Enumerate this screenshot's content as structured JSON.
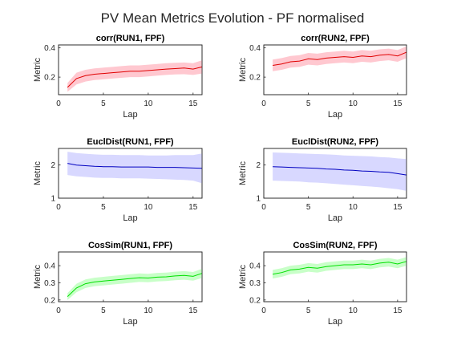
{
  "figure": {
    "title": "PV Mean Metrics Evolution - PF normalised"
  },
  "chart_data": [
    {
      "type": "line",
      "title": "corr(RUN1, FPF)",
      "xlabel": "Lap",
      "ylabel": "Metric",
      "xlim": [
        0,
        16
      ],
      "ylim": [
        0.08,
        0.42
      ],
      "xticks": [
        0,
        5,
        10,
        15
      ],
      "yticks": [
        0.2,
        0.4
      ],
      "yticklabels": [
        "0.2",
        "0.4"
      ],
      "grid": false,
      "color": "#e00000",
      "band_color": "#ffc8d0",
      "x": [
        1,
        2,
        3,
        4,
        5,
        6,
        7,
        8,
        9,
        10,
        11,
        12,
        13,
        14,
        15,
        16
      ],
      "series": [
        {
          "values": [
            0.13,
            0.19,
            0.21,
            0.22,
            0.225,
            0.23,
            0.235,
            0.24,
            0.24,
            0.245,
            0.25,
            0.255,
            0.258,
            0.262,
            0.255,
            0.27
          ]
        }
      ],
      "band_lower": [
        0.1,
        0.15,
        0.17,
        0.18,
        0.185,
        0.19,
        0.195,
        0.2,
        0.2,
        0.205,
        0.21,
        0.215,
        0.218,
        0.22,
        0.215,
        0.225
      ],
      "band_upper": [
        0.16,
        0.23,
        0.25,
        0.26,
        0.265,
        0.27,
        0.275,
        0.28,
        0.28,
        0.285,
        0.29,
        0.295,
        0.298,
        0.3,
        0.295,
        0.315
      ]
    },
    {
      "type": "line",
      "title": "corr(RUN2, FPF)",
      "xlabel": "Lap",
      "ylabel": "Metric",
      "xlim": [
        0,
        16
      ],
      "ylim": [
        0.08,
        0.42
      ],
      "xticks": [
        0,
        5,
        10,
        15
      ],
      "yticks": [
        0.2,
        0.4
      ],
      "yticklabels": [
        "0.2",
        "0.4"
      ],
      "grid": false,
      "color": "#e00000",
      "band_color": "#ffc8d0",
      "x": [
        1,
        2,
        3,
        4,
        5,
        6,
        7,
        8,
        9,
        10,
        11,
        12,
        13,
        14,
        15,
        16
      ],
      "series": [
        {
          "values": [
            0.28,
            0.29,
            0.305,
            0.31,
            0.325,
            0.32,
            0.33,
            0.335,
            0.34,
            0.335,
            0.345,
            0.34,
            0.35,
            0.355,
            0.345,
            0.37
          ]
        }
      ],
      "band_lower": [
        0.24,
        0.25,
        0.265,
        0.27,
        0.285,
        0.28,
        0.29,
        0.295,
        0.3,
        0.295,
        0.305,
        0.3,
        0.31,
        0.315,
        0.305,
        0.33
      ],
      "band_upper": [
        0.32,
        0.33,
        0.345,
        0.35,
        0.365,
        0.36,
        0.37,
        0.375,
        0.38,
        0.375,
        0.385,
        0.38,
        0.39,
        0.395,
        0.385,
        0.41
      ]
    },
    {
      "type": "line",
      "title": "EuclDist(RUN1, FPF)",
      "xlabel": "Lap",
      "ylabel": "Metric",
      "xlim": [
        0,
        16
      ],
      "ylim": [
        1,
        2.5
      ],
      "xticks": [
        0,
        5,
        10,
        15
      ],
      "yticks": [
        1,
        2
      ],
      "yticklabels": [
        "1",
        "2"
      ],
      "grid": false,
      "color": "#0000c0",
      "band_color": "#d8d8ff",
      "x": [
        1,
        2,
        3,
        4,
        5,
        6,
        7,
        8,
        9,
        10,
        11,
        12,
        13,
        14,
        15,
        16
      ],
      "series": [
        {
          "values": [
            2.05,
            2.0,
            1.98,
            1.96,
            1.95,
            1.95,
            1.94,
            1.94,
            1.94,
            1.94,
            1.93,
            1.93,
            1.93,
            1.92,
            1.91,
            1.9
          ]
        }
      ],
      "band_lower": [
        1.7,
        1.66,
        1.64,
        1.62,
        1.61,
        1.61,
        1.6,
        1.6,
        1.6,
        1.59,
        1.58,
        1.57,
        1.56,
        1.55,
        1.53,
        1.45
      ],
      "band_upper": [
        2.4,
        2.36,
        2.34,
        2.32,
        2.31,
        2.31,
        2.3,
        2.3,
        2.3,
        2.29,
        2.29,
        2.29,
        2.3,
        2.3,
        2.3,
        2.35
      ]
    },
    {
      "type": "line",
      "title": "EuclDist(RUN2, FPF)",
      "xlabel": "Lap",
      "ylabel": "Metric",
      "xlim": [
        0,
        16
      ],
      "ylim": [
        1,
        2.5
      ],
      "xticks": [
        0,
        5,
        10,
        15
      ],
      "yticks": [
        1,
        2
      ],
      "yticklabels": [
        "1",
        "2"
      ],
      "grid": false,
      "color": "#0000c0",
      "band_color": "#d8d8ff",
      "x": [
        1,
        2,
        3,
        4,
        5,
        6,
        7,
        8,
        9,
        10,
        11,
        12,
        13,
        14,
        15,
        16
      ],
      "series": [
        {
          "values": [
            1.95,
            1.94,
            1.93,
            1.92,
            1.91,
            1.9,
            1.88,
            1.87,
            1.85,
            1.84,
            1.82,
            1.81,
            1.79,
            1.78,
            1.74,
            1.7
          ]
        }
      ],
      "band_lower": [
        1.53,
        1.52,
        1.51,
        1.5,
        1.48,
        1.47,
        1.45,
        1.43,
        1.41,
        1.39,
        1.37,
        1.35,
        1.33,
        1.3,
        1.27,
        1.22
      ],
      "band_upper": [
        2.38,
        2.37,
        2.36,
        2.35,
        2.34,
        2.33,
        2.32,
        2.31,
        2.29,
        2.28,
        2.27,
        2.26,
        2.24,
        2.23,
        2.2,
        2.18
      ]
    },
    {
      "type": "line",
      "title": "CosSim(RUN1, FPF)",
      "xlabel": "Lap",
      "ylabel": "Metric",
      "xlim": [
        0,
        16
      ],
      "ylim": [
        0.19,
        0.48
      ],
      "xticks": [
        0,
        5,
        10,
        15
      ],
      "yticks": [
        0.2,
        0.3,
        0.4
      ],
      "yticklabels": [
        "0.2",
        "0.3",
        "0.4"
      ],
      "grid": false,
      "color": "#00e000",
      "band_color": "#c8ffc8",
      "x": [
        1,
        2,
        3,
        4,
        5,
        6,
        7,
        8,
        9,
        10,
        11,
        12,
        13,
        14,
        15,
        16
      ],
      "series": [
        {
          "values": [
            0.22,
            0.27,
            0.295,
            0.305,
            0.31,
            0.315,
            0.32,
            0.325,
            0.33,
            0.328,
            0.333,
            0.335,
            0.34,
            0.343,
            0.338,
            0.355
          ]
        }
      ],
      "band_lower": [
        0.2,
        0.245,
        0.27,
        0.28,
        0.285,
        0.29,
        0.295,
        0.3,
        0.305,
        0.303,
        0.308,
        0.31,
        0.315,
        0.318,
        0.313,
        0.328
      ],
      "band_upper": [
        0.24,
        0.295,
        0.32,
        0.33,
        0.335,
        0.34,
        0.345,
        0.35,
        0.355,
        0.353,
        0.358,
        0.36,
        0.365,
        0.368,
        0.363,
        0.382
      ]
    },
    {
      "type": "line",
      "title": "CosSim(RUN2, FPF)",
      "xlabel": "Lap",
      "ylabel": "Metric",
      "xlim": [
        0,
        16
      ],
      "ylim": [
        0.19,
        0.48
      ],
      "xticks": [
        0,
        5,
        10,
        15
      ],
      "yticks": [
        0.2,
        0.3,
        0.4
      ],
      "yticklabels": [
        "0.2",
        "0.3",
        "0.4"
      ],
      "grid": false,
      "color": "#00e000",
      "band_color": "#c8ffc8",
      "x": [
        1,
        2,
        3,
        4,
        5,
        6,
        7,
        8,
        9,
        10,
        11,
        12,
        13,
        14,
        15,
        16
      ],
      "series": [
        {
          "values": [
            0.35,
            0.36,
            0.375,
            0.38,
            0.39,
            0.385,
            0.395,
            0.4,
            0.405,
            0.405,
            0.41,
            0.405,
            0.415,
            0.42,
            0.41,
            0.425
          ]
        }
      ],
      "band_lower": [
        0.325,
        0.335,
        0.35,
        0.355,
        0.365,
        0.36,
        0.37,
        0.375,
        0.38,
        0.38,
        0.385,
        0.38,
        0.39,
        0.395,
        0.385,
        0.4
      ],
      "band_upper": [
        0.375,
        0.385,
        0.4,
        0.405,
        0.415,
        0.41,
        0.42,
        0.425,
        0.43,
        0.43,
        0.435,
        0.43,
        0.44,
        0.445,
        0.435,
        0.45
      ]
    }
  ]
}
